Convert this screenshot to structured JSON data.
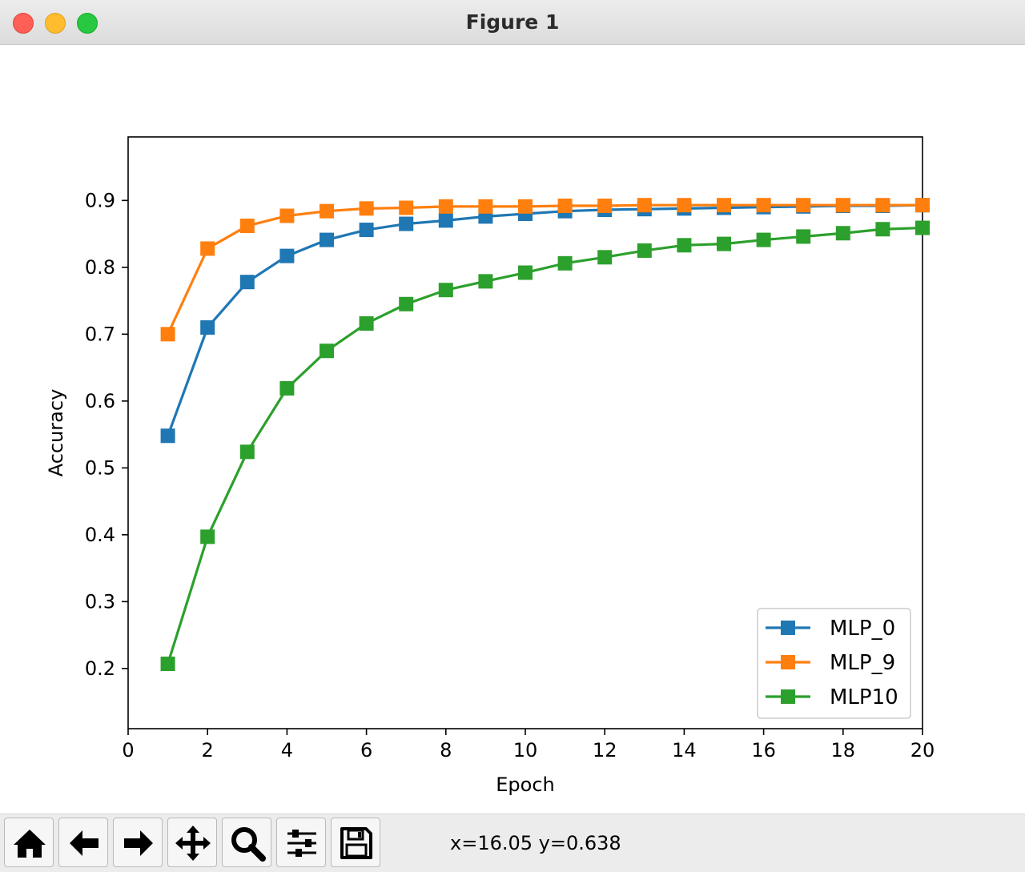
{
  "window": {
    "title": "Figure 1"
  },
  "toolbar": {
    "buttons": [
      {
        "icon": "home-icon"
      },
      {
        "icon": "back-arrow-icon"
      },
      {
        "icon": "forward-arrow-icon"
      },
      {
        "icon": "pan-icon"
      },
      {
        "icon": "zoom-icon"
      },
      {
        "icon": "configure-subplots-icon"
      },
      {
        "icon": "save-icon"
      }
    ],
    "coords": "x=16.05 y=0.638"
  },
  "chart_data": {
    "type": "line",
    "title": "",
    "xlabel": "Epoch",
    "ylabel": "Accuracy",
    "xlim": [
      0,
      20
    ],
    "ylim": [
      0.11,
      0.995
    ],
    "xticks": [
      0,
      2,
      4,
      6,
      8,
      10,
      12,
      14,
      16,
      18,
      20
    ],
    "xtick_labels": [
      "0",
      "2",
      "4",
      "6",
      "8",
      "10",
      "12",
      "14",
      "16",
      "18",
      "20"
    ],
    "yticks": [
      0.2,
      0.3,
      0.4,
      0.5,
      0.6,
      0.7,
      0.8,
      0.9
    ],
    "ytick_labels": [
      "0.2",
      "0.3",
      "0.4",
      "0.5",
      "0.6",
      "0.7",
      "0.8",
      "0.9"
    ],
    "grid": false,
    "legend_position": "lower-right",
    "marker": "square",
    "x": [
      1,
      2,
      3,
      4,
      5,
      6,
      7,
      8,
      9,
      10,
      11,
      12,
      13,
      14,
      15,
      16,
      17,
      18,
      19,
      20
    ],
    "series": [
      {
        "name": "MLP_0",
        "color": "#1f77b4",
        "values": [
          0.548,
          0.71,
          0.778,
          0.817,
          0.841,
          0.856,
          0.865,
          0.87,
          0.876,
          0.88,
          0.884,
          0.886,
          0.887,
          0.888,
          0.889,
          0.89,
          0.891,
          0.892,
          0.892,
          0.893
        ]
      },
      {
        "name": "MLP_9",
        "color": "#ff7f0e",
        "values": [
          0.7,
          0.828,
          0.862,
          0.877,
          0.884,
          0.888,
          0.889,
          0.891,
          0.891,
          0.891,
          0.892,
          0.892,
          0.893,
          0.893,
          0.893,
          0.893,
          0.893,
          0.893,
          0.893,
          0.893
        ]
      },
      {
        "name": "MLP10",
        "color": "#2ca02c",
        "values": [
          0.207,
          0.397,
          0.524,
          0.619,
          0.675,
          0.716,
          0.745,
          0.766,
          0.779,
          0.792,
          0.806,
          0.815,
          0.825,
          0.833,
          0.835,
          0.841,
          0.846,
          0.851,
          0.857,
          0.859
        ]
      }
    ]
  }
}
